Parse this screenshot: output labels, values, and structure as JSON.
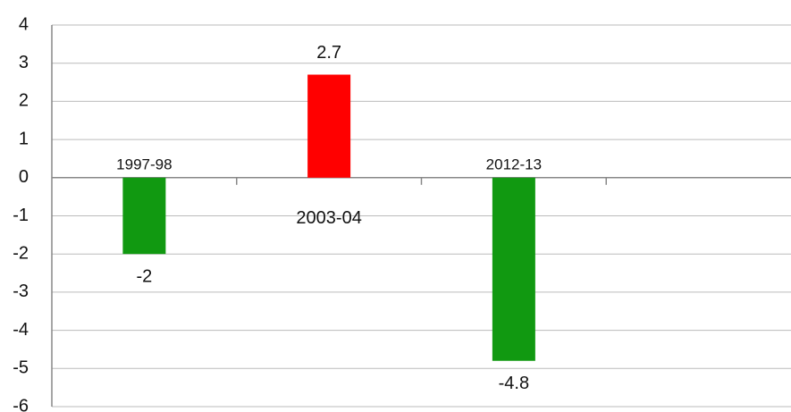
{
  "chart_data": {
    "type": "bar",
    "categories": [
      "1997-98",
      "2003-04",
      "2012-13",
      null
    ],
    "values": [
      -2,
      2.7,
      -4.8,
      null
    ],
    "colors": [
      "#119911",
      "#ff0000",
      "#119911",
      null
    ],
    "ylim": [
      -6,
      4
    ],
    "yticks": [
      -6,
      -5,
      -4,
      -3,
      -2,
      -1,
      0,
      1,
      2,
      3,
      4
    ],
    "grid": true
  }
}
